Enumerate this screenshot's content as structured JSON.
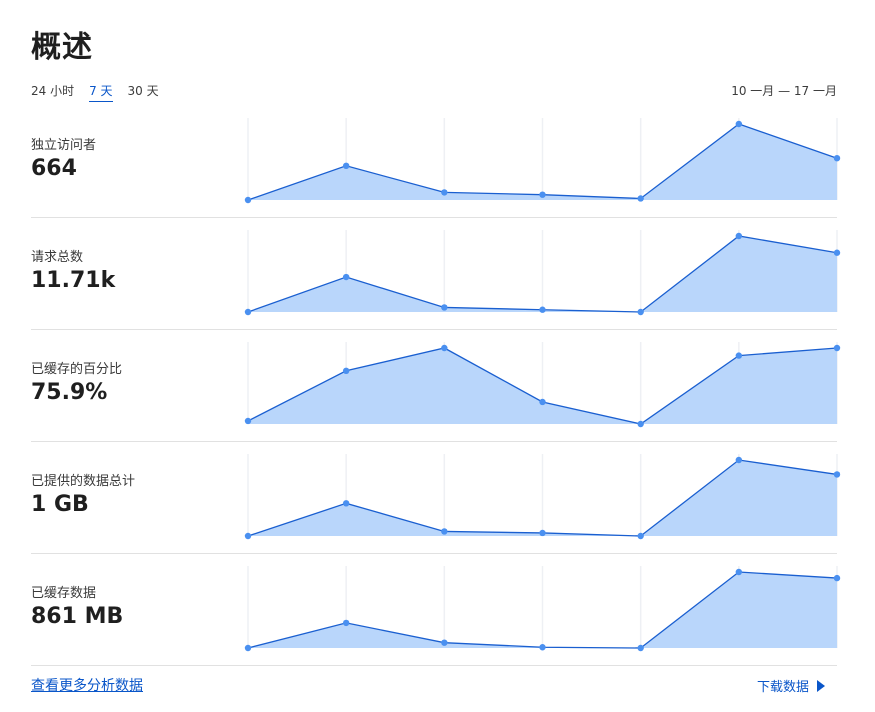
{
  "page": {
    "title": "概述",
    "ranges": [
      {
        "label": "24 小时",
        "active": false
      },
      {
        "label": "7 天",
        "active": true
      },
      {
        "label": "30 天",
        "active": false
      }
    ],
    "date_range": "10 一月 — 17 一月"
  },
  "metrics": [
    {
      "label": "独立访问者",
      "value": "664"
    },
    {
      "label": "请求总数",
      "value": "11.71k"
    },
    {
      "label": "已缓存的百分比",
      "value": "75.9%"
    },
    {
      "label": "已提供的数据总计",
      "value": "1 GB"
    },
    {
      "label": "已缓存数据",
      "value": "861 MB"
    }
  ],
  "footer": {
    "more_link": "查看更多分析数据",
    "download_label": "下载数据"
  },
  "colors": {
    "line": "#1a5fd0",
    "fill": "#b9d6fb",
    "point": "#4a90f0",
    "grid": "#eef0f4"
  },
  "chart_data": [
    {
      "type": "area",
      "x": [
        1,
        2,
        3,
        4,
        5,
        6,
        7
      ],
      "series": [
        {
          "values": [
            0,
            45,
            10,
            7,
            2,
            100,
            55
          ]
        }
      ],
      "ylim": [
        0,
        100
      ]
    },
    {
      "type": "area",
      "x": [
        1,
        2,
        3,
        4,
        5,
        6,
        7
      ],
      "series": [
        {
          "values": [
            0,
            46,
            6,
            3,
            0,
            100,
            78
          ]
        }
      ],
      "ylim": [
        0,
        100
      ]
    },
    {
      "type": "area",
      "x": [
        1,
        2,
        3,
        4,
        5,
        6,
        7
      ],
      "series": [
        {
          "values": [
            4,
            70,
            100,
            29,
            0,
            90,
            100
          ]
        }
      ],
      "ylim": [
        0,
        100
      ]
    },
    {
      "type": "area",
      "x": [
        1,
        2,
        3,
        4,
        5,
        6,
        7
      ],
      "series": [
        {
          "values": [
            0,
            43,
            6,
            4,
            0,
            100,
            81
          ]
        }
      ],
      "ylim": [
        0,
        100
      ]
    },
    {
      "type": "area",
      "x": [
        1,
        2,
        3,
        4,
        5,
        6,
        7
      ],
      "series": [
        {
          "values": [
            0,
            33,
            7,
            1,
            0,
            100,
            92
          ]
        }
      ],
      "ylim": [
        0,
        100
      ]
    }
  ]
}
